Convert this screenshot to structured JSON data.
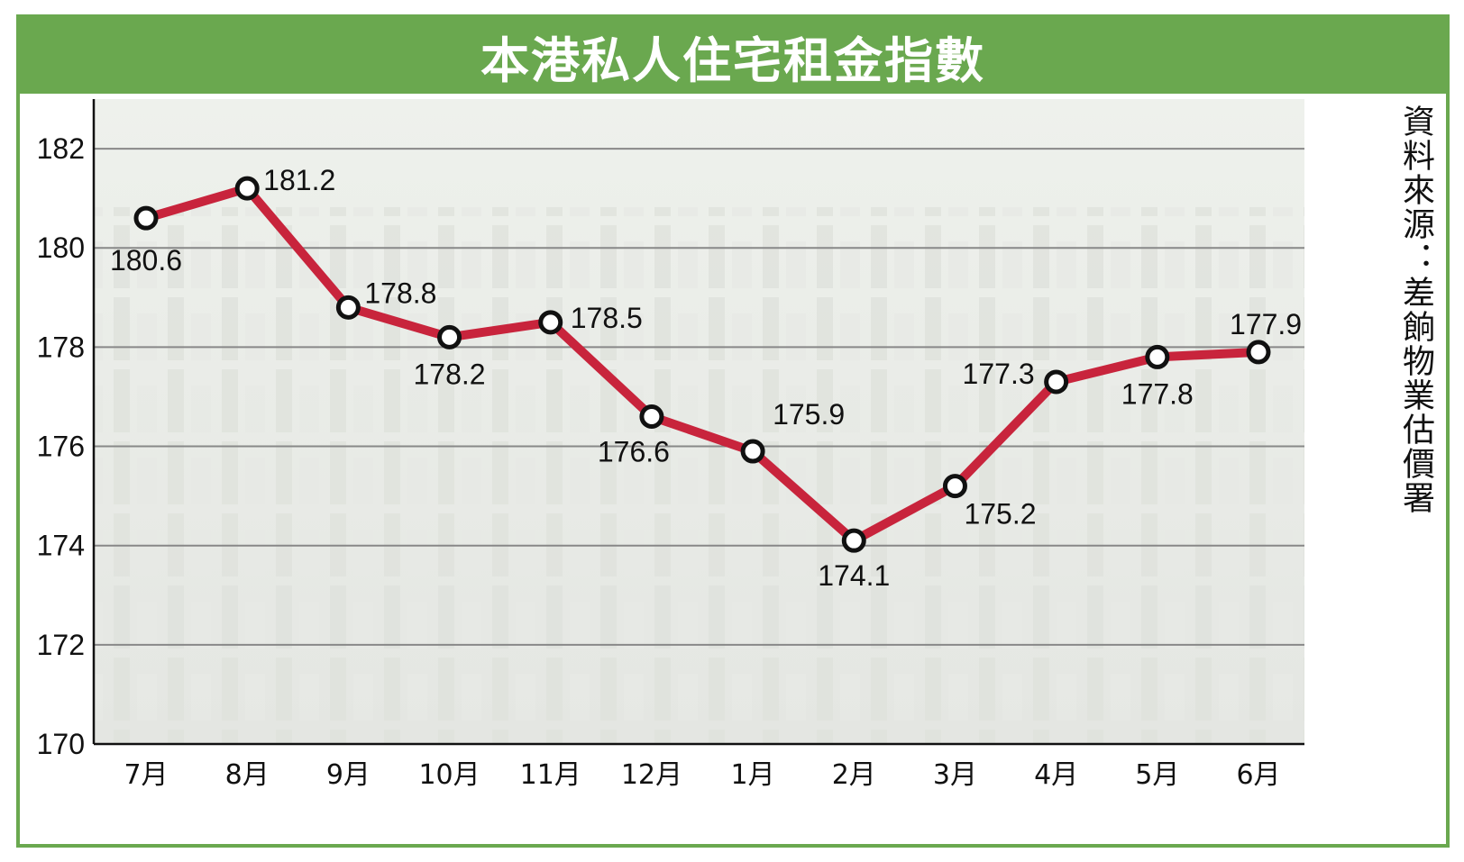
{
  "title": "本港私人住宅租金指數",
  "source": "資料來源：差餉物業估價署",
  "chart_data": {
    "type": "line",
    "title": "本港私人住宅租金指數",
    "categories": [
      "7月",
      "8月",
      "9月",
      "10月",
      "11月",
      "12月",
      "1月",
      "2月",
      "3月",
      "4月",
      "5月",
      "6月"
    ],
    "values": [
      180.6,
      181.2,
      178.8,
      178.2,
      178.5,
      176.6,
      175.9,
      174.1,
      175.2,
      177.3,
      177.8,
      177.9
    ],
    "data_labels": [
      "180.6",
      "181.2",
      "178.8",
      "178.2",
      "178.5",
      "176.6",
      "175.9",
      "174.1",
      "175.2",
      "177.3",
      "177.8",
      "177.9"
    ],
    "ylim": [
      170,
      183
    ],
    "yticks": [
      170,
      172,
      174,
      176,
      178,
      180,
      182
    ],
    "grid": true,
    "line_color": "#c8243c",
    "grid_color": "#888888",
    "accent_color": "#6aa84f"
  }
}
